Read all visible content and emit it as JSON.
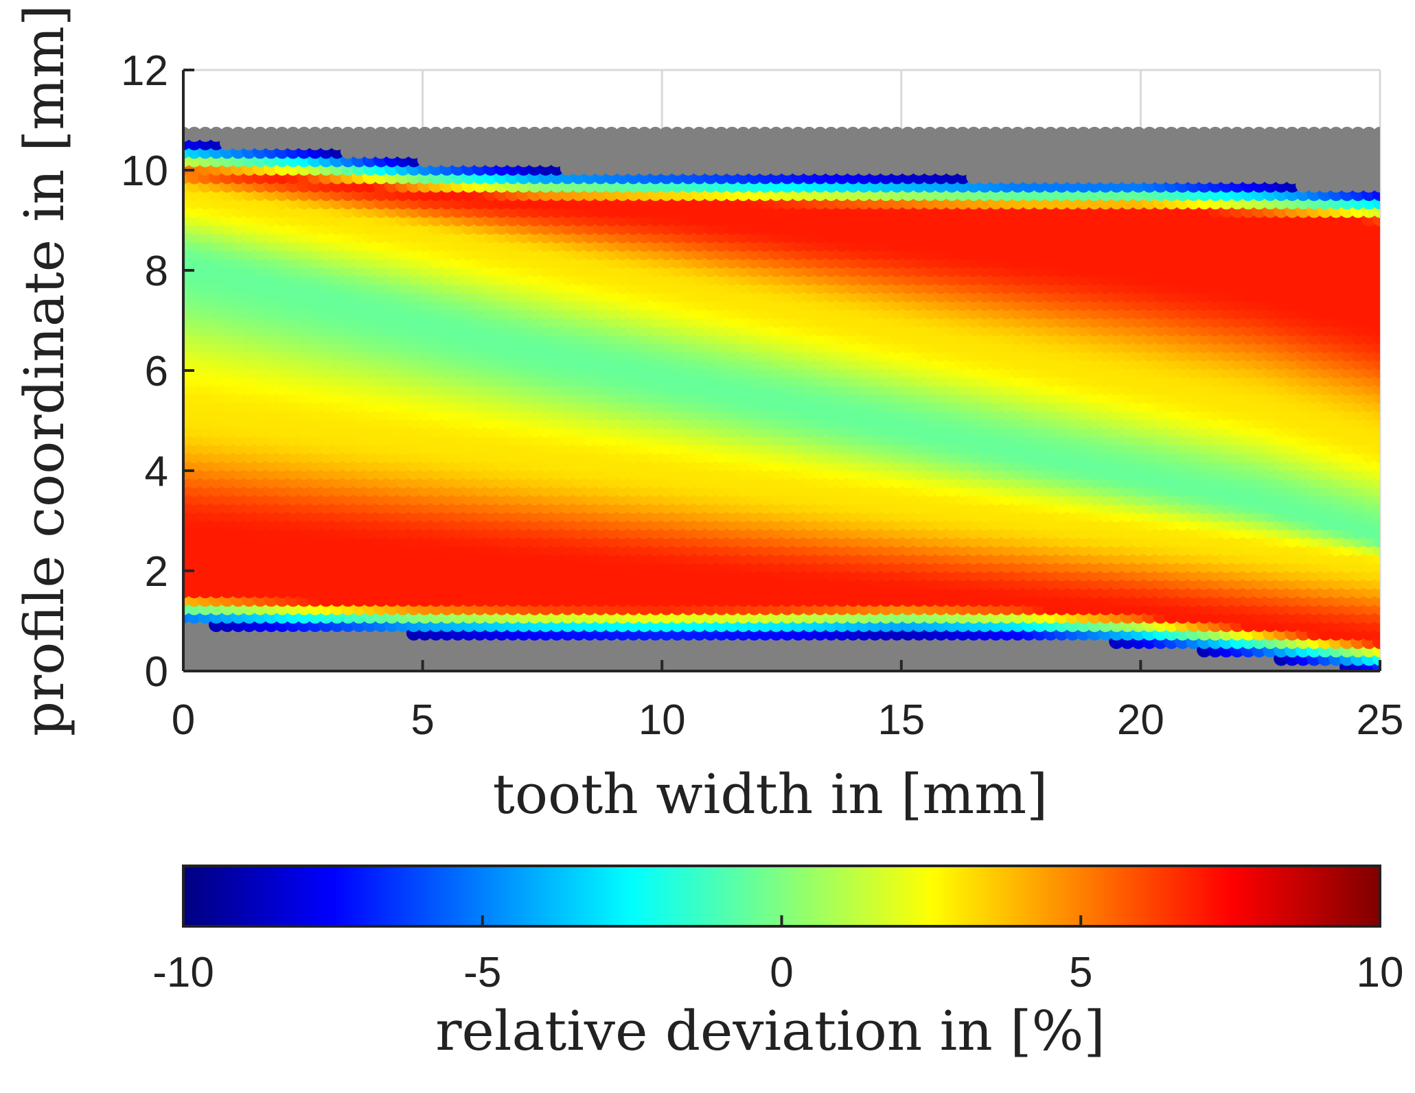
{
  "chart_data": {
    "type": "scatter",
    "title": "",
    "xlabel": {
      "prefix": "tooth width in ",
      "open": "[",
      "unit": "mm",
      "close": "]"
    },
    "ylabel": {
      "prefix": "profile coordinate in ",
      "open": "[",
      "unit": "mm",
      "close": "]"
    },
    "xlim": [
      0,
      25
    ],
    "ylim": [
      0,
      12
    ],
    "xticks": [
      0,
      5,
      10,
      15,
      20,
      25
    ],
    "xtick_labels": [
      "0",
      "5",
      "10",
      "15",
      "20",
      "25"
    ],
    "yticks": [
      0,
      2,
      4,
      6,
      8,
      10,
      12
    ],
    "ytick_labels": [
      "0",
      "2",
      "4",
      "6",
      "8",
      "10",
      "12"
    ],
    "grid": true,
    "colorbar": {
      "label": {
        "prefix": "relative deviation in ",
        "open": "[",
        "unit": "%",
        "close": "]"
      },
      "range": [
        -10,
        10
      ],
      "ticks": [
        -10,
        -5,
        0,
        5,
        10
      ],
      "tick_labels": [
        "-10",
        "-5",
        "0",
        "5",
        "10"
      ],
      "colormap": "jet",
      "orientation": "horizontal",
      "placement": "bottom"
    },
    "inactive_color": "#808080",
    "field": {
      "description_note": "relative deviation (%) over tooth width x (mm) and profile coordinate y (mm)",
      "x_samples": [
        0,
        2.5,
        5,
        7.5,
        10,
        12.5,
        15,
        17.5,
        20,
        22.5,
        25
      ],
      "contact_top_edge_mm": [
        10.6,
        10.45,
        10.2,
        10.05,
        10.0,
        9.95,
        9.9,
        9.85,
        9.85,
        9.75,
        9.6
      ],
      "contact_bottom_edge_mm": [
        0.95,
        0.85,
        0.75,
        0.7,
        0.68,
        0.7,
        0.75,
        0.7,
        0.55,
        0.3,
        0.0
      ],
      "band_centers": [
        {
          "name": "lower-red-band",
          "value_pct": 7,
          "y_mm": [
            2.8,
            2.6,
            2.4,
            2.2,
            2.0,
            1.8,
            1.6,
            1.4,
            1.2,
            0.9,
            0.6
          ]
        },
        {
          "name": "lower-yellow-band",
          "value_pct": 3,
          "y_mm": [
            5.2,
            4.9,
            4.6,
            4.3,
            4.0,
            3.7,
            3.4,
            3.1,
            2.8,
            2.5,
            2.2
          ]
        },
        {
          "name": "middle-green-band",
          "value_pct": -0.5,
          "y_mm": [
            8.2,
            7.6,
            7.0,
            6.4,
            5.9,
            5.4,
            4.9,
            4.4,
            3.9,
            3.4,
            2.7
          ]
        },
        {
          "name": "upper-yellow-band",
          "value_pct": 3,
          "y_mm": [
            9.6,
            9.2,
            8.8,
            8.3,
            7.8,
            7.3,
            6.8,
            6.3,
            5.8,
            5.3,
            4.6
          ]
        },
        {
          "name": "upper-red-band",
          "value_pct": 7,
          "y_mm": [
            10.2,
            9.9,
            9.6,
            9.4,
            9.2,
            8.9,
            8.6,
            8.3,
            8.0,
            7.6,
            7.0
          ]
        }
      ]
    }
  }
}
